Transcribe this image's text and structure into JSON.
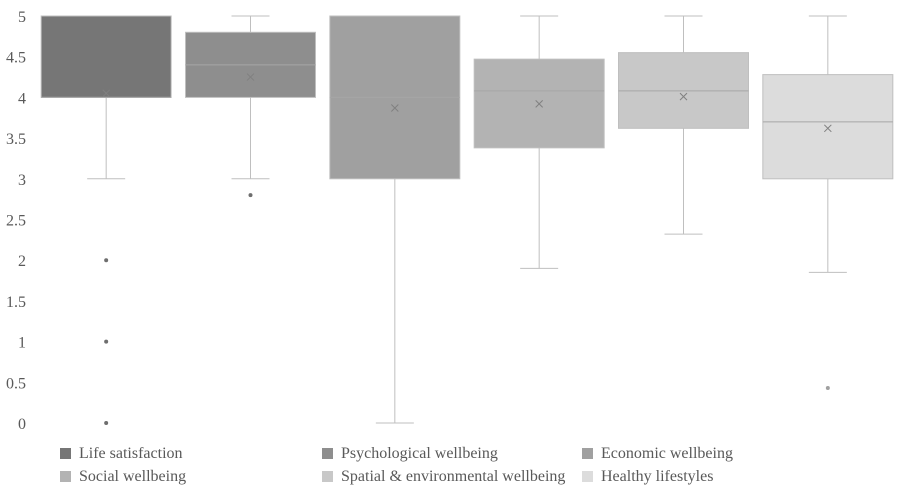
{
  "chart_data": {
    "type": "box",
    "title": "",
    "xlabel": "",
    "ylabel": "",
    "ylim": [
      0,
      5
    ],
    "y_ticks": [
      "0",
      "0.5",
      "1",
      "1.5",
      "2",
      "2.5",
      "3",
      "3.5",
      "4",
      "4.5",
      "5"
    ],
    "grid": false,
    "legend_position": "bottom",
    "series": [
      {
        "name": "Life satisfaction",
        "color": "#767676",
        "min": 3,
        "q1": 4,
        "median": 4,
        "q3": 5,
        "max": 5,
        "mean": 4.05,
        "outliers": [
          2,
          1,
          0
        ]
      },
      {
        "name": "Psychological wellbeing",
        "color": "#8e8e8e",
        "min": 3,
        "q1": 4,
        "median": 4.4,
        "q3": 4.8,
        "max": 5,
        "mean": 4.25,
        "outliers": [
          2.8
        ]
      },
      {
        "name": "Economic wellbeing",
        "color": "#a0a0a0",
        "min": 0,
        "q1": 3,
        "median": 4,
        "q3": 5,
        "max": 5,
        "mean": 3.87,
        "outliers": []
      },
      {
        "name": "Social wellbeing",
        "color": "#b3b3b3",
        "min": 1.9,
        "q1": 3.38,
        "median": 4.08,
        "q3": 4.47,
        "max": 5,
        "mean": 3.92,
        "outliers": []
      },
      {
        "name": "Spatial & environmental wellbeing",
        "color": "#c8c8c8",
        "min": 2.32,
        "q1": 3.62,
        "median": 4.08,
        "q3": 4.55,
        "max": 5,
        "mean": 4.01,
        "outliers": []
      },
      {
        "name": "Healthy lifestyles",
        "color": "#dcdcdc",
        "min": 1.85,
        "q1": 3,
        "median": 3.7,
        "q3": 4.28,
        "max": 5,
        "mean": 3.62,
        "outliers": [
          0.43
        ]
      }
    ]
  }
}
